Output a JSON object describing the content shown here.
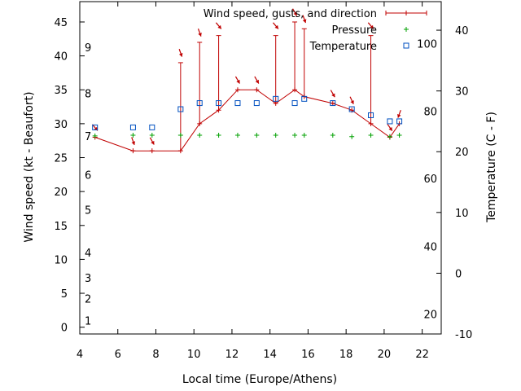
{
  "chart_data": {
    "type": "line",
    "xlabel": "Local time (Europe/Athens)",
    "ylabel": "Wind speed (kt - Beaufort)",
    "y2label": "Temperature (C - F)",
    "xlim": [
      4,
      23
    ],
    "ylim": [
      -1,
      48
    ],
    "y2lim": [
      -10,
      44.7
    ],
    "x_ticks": [
      4,
      6,
      8,
      10,
      12,
      14,
      16,
      18,
      20,
      22
    ],
    "y_ticks": [
      0,
      5,
      10,
      15,
      20,
      25,
      30,
      35,
      40,
      45
    ],
    "y2_ticks": [
      -10,
      0,
      10,
      20,
      30,
      40
    ],
    "beaufort_labels": [
      {
        "label": "1",
        "y": 1
      },
      {
        "label": "2",
        "y": 4.2
      },
      {
        "label": "3",
        "y": 7.3
      },
      {
        "label": "4",
        "y": 11
      },
      {
        "label": "5",
        "y": 17.3
      },
      {
        "label": "6",
        "y": 22.5
      },
      {
        "label": "7",
        "y": 28.2
      },
      {
        "label": "8",
        "y": 34.5
      },
      {
        "label": "9",
        "y": 41.3
      }
    ],
    "fahrenheit_labels": [
      {
        "label": "20",
        "y": -6.7
      },
      {
        "label": "40",
        "y": 4.4
      },
      {
        "label": "60",
        "y": 15.6
      },
      {
        "label": "80",
        "y": 26.7
      },
      {
        "label": "100",
        "y": 37.8
      }
    ],
    "legend": {
      "position": "top-right",
      "entries": [
        "Wind speed, gusts, and direction",
        "Pressure",
        "Temperature"
      ]
    },
    "series": [
      {
        "name": "Wind speed, gusts, and direction",
        "color": "#c00000",
        "points": [
          {
            "x": 4.8,
            "y": 28,
            "gust": 28,
            "dir": 320
          },
          {
            "x": 6.8,
            "y": 26,
            "gust": 26,
            "dir": 340
          },
          {
            "x": 7.8,
            "y": 26,
            "gust": 26,
            "dir": 330
          },
          {
            "x": 9.3,
            "y": 26,
            "gust": 39,
            "dir": 340
          },
          {
            "x": 10.3,
            "y": 30,
            "gust": 42,
            "dir": 340
          },
          {
            "x": 11.3,
            "y": 32,
            "gust": 43,
            "dir": 320
          },
          {
            "x": 12.3,
            "y": 35,
            "gust": 35,
            "dir": 330
          },
          {
            "x": 13.3,
            "y": 35,
            "gust": 35,
            "dir": 330
          },
          {
            "x": 14.3,
            "y": 33,
            "gust": 43,
            "dir": 320
          },
          {
            "x": 15.3,
            "y": 35,
            "gust": 45,
            "dir": 330
          },
          {
            "x": 15.8,
            "y": 34,
            "gust": 44,
            "dir": 340
          },
          {
            "x": 17.3,
            "y": 33,
            "gust": 33,
            "dir": 330
          },
          {
            "x": 18.3,
            "y": 32,
            "gust": 32,
            "dir": 335
          },
          {
            "x": 19.3,
            "y": 30,
            "gust": 43,
            "dir": 320
          },
          {
            "x": 20.3,
            "y": 28,
            "gust": 28,
            "dir": 325
          },
          {
            "x": 20.8,
            "y": 30,
            "gust": 30,
            "dir": 20
          }
        ]
      },
      {
        "name": "Pressure",
        "color": "#00a000",
        "points": [
          {
            "x": 4.8,
            "y": 28.2
          },
          {
            "x": 6.8,
            "y": 28.3
          },
          {
            "x": 7.8,
            "y": 28.3
          },
          {
            "x": 9.3,
            "y": 28.3
          },
          {
            "x": 10.3,
            "y": 28.3
          },
          {
            "x": 11.3,
            "y": 28.3
          },
          {
            "x": 12.3,
            "y": 28.3
          },
          {
            "x": 13.3,
            "y": 28.3
          },
          {
            "x": 14.3,
            "y": 28.3
          },
          {
            "x": 15.3,
            "y": 28.3
          },
          {
            "x": 15.8,
            "y": 28.3
          },
          {
            "x": 17.3,
            "y": 28.3
          },
          {
            "x": 18.3,
            "y": 28.1
          },
          {
            "x": 19.3,
            "y": 28.3
          },
          {
            "x": 20.3,
            "y": 28.1
          },
          {
            "x": 20.8,
            "y": 28.3
          }
        ]
      },
      {
        "name": "Temperature",
        "color": "#0050c0",
        "axis": "y2",
        "points": [
          {
            "x": 4.8,
            "y": 24
          },
          {
            "x": 6.8,
            "y": 24
          },
          {
            "x": 7.8,
            "y": 24
          },
          {
            "x": 9.3,
            "y": 27
          },
          {
            "x": 10.3,
            "y": 28
          },
          {
            "x": 11.3,
            "y": 28
          },
          {
            "x": 12.3,
            "y": 28
          },
          {
            "x": 13.3,
            "y": 28
          },
          {
            "x": 14.3,
            "y": 28.7
          },
          {
            "x": 15.3,
            "y": 28
          },
          {
            "x": 15.8,
            "y": 28.7
          },
          {
            "x": 17.3,
            "y": 28
          },
          {
            "x": 18.3,
            "y": 27
          },
          {
            "x": 19.3,
            "y": 26
          },
          {
            "x": 20.3,
            "y": 25
          },
          {
            "x": 20.8,
            "y": 25
          }
        ]
      }
    ]
  }
}
